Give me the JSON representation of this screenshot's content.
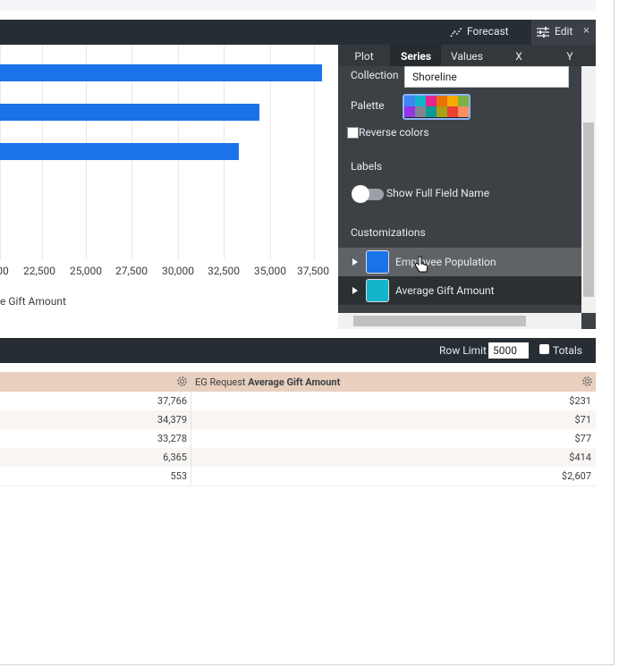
{
  "toolbar": {
    "forecast": "Forecast",
    "edit": "Edit",
    "close": "×"
  },
  "chart": {
    "x_ticks": [
      "00",
      "22,500",
      "25,000",
      "27,500",
      "30,000",
      "32,500",
      "35,000",
      "37,500"
    ],
    "legend": "e Gift Amount"
  },
  "panel": {
    "tabs": [
      "Plot",
      "Series",
      "Values",
      "X",
      "Y"
    ],
    "collection_label": "Collection",
    "collection_value": "Shoreline",
    "palette_label": "Palette",
    "reverse_colors": "Reverse colors",
    "labels_heading": "Labels",
    "show_full_field_name": "Show Full Field Name",
    "customizations_heading": "Customizations",
    "series": [
      "Employee Population",
      "Average Gift Amount"
    ]
  },
  "table_controls": {
    "row_limit_label": "Row Limit",
    "row_limit_value": "5000",
    "totals": "Totals"
  },
  "table": {
    "header": {
      "prefix": "EG Request",
      "field": "Average Gift Amount"
    },
    "rows": [
      [
        "37,766",
        "$231"
      ],
      [
        "34,379",
        "$71"
      ],
      [
        "33,278",
        "$77"
      ],
      [
        "6,365",
        "$414"
      ],
      [
        "553",
        "$2,607"
      ]
    ]
  }
}
